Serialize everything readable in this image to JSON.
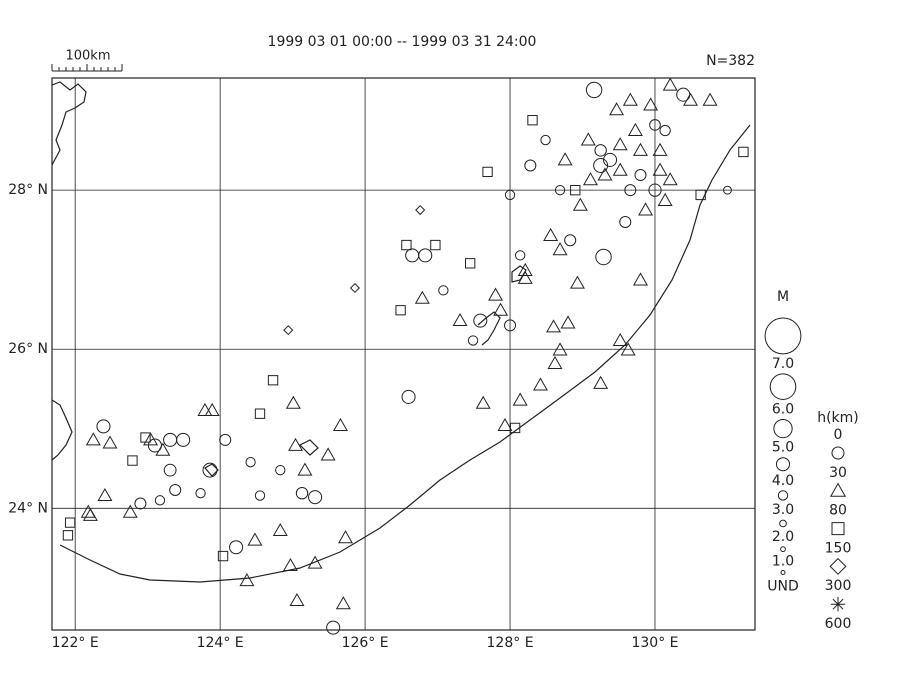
{
  "chart_data": {
    "type": "map",
    "title": "1999 03 01 00:00 -- 1999 03 31 24:00",
    "count_label": "N=382",
    "scale_label": "100km",
    "xlim": [
      121.68,
      131.38
    ],
    "ylim": [
      22.47,
      29.41
    ],
    "xticks": [
      {
        "value": 122,
        "label": "122° E"
      },
      {
        "value": 124,
        "label": "124° E"
      },
      {
        "value": 126,
        "label": "126° E"
      },
      {
        "value": 128,
        "label": "128° E"
      },
      {
        "value": 130,
        "label": "130° E"
      }
    ],
    "yticks": [
      {
        "value": 24,
        "label": "24° N"
      },
      {
        "value": 26,
        "label": "26° N"
      },
      {
        "value": 28,
        "label": "28° N"
      }
    ],
    "grid": true,
    "color": "#222222",
    "magnitude_legend": {
      "title": "M",
      "values": [
        {
          "value": 7,
          "label": "7.0"
        },
        {
          "value": 6,
          "label": "6.0"
        },
        {
          "value": 5,
          "label": "5.0"
        },
        {
          "value": 4,
          "label": "4.0"
        },
        {
          "value": 3,
          "label": "3.0"
        },
        {
          "value": 2,
          "label": "2.0"
        },
        {
          "value": 1,
          "label": "1.0"
        }
      ],
      "undetermined": "UND"
    },
    "depth_legend": {
      "title": "h(km)",
      "values": [
        0,
        30,
        80,
        150,
        300,
        600
      ],
      "shapes": [
        "circle",
        "triangle",
        "square",
        "diamond",
        "asterisk"
      ]
    },
    "events": {
      "lon": [
        129.16,
        130.39,
        130.49,
        130.76,
        130.21,
        129.66,
        129.94,
        129.47,
        129.08,
        128.31,
        128.28,
        128.49,
        128.76,
        129.25,
        129.38,
        129.52,
        129.11,
        129.31,
        129.8,
        130.07,
        130.21,
        130.0,
        130.14,
        129.66,
        128.9,
        128.69,
        128.0,
        128.97,
        129.59,
        129.87,
        130.07,
        129.8,
        129.25,
        129.52,
        130.0,
        130.14,
        130.63,
        131.22,
        131.0,
        129.73,
        129.29,
        128.83,
        128.56,
        128.69,
        128.14,
        128.21,
        128.21,
        127.8,
        127.87,
        127.59,
        128.0,
        127.49,
        127.31,
        127.08,
        126.79,
        127.45,
        126.65,
        126.83,
        126.49,
        126.76,
        126.97,
        126.57,
        127.69,
        128.93,
        128.6,
        128.8,
        129.8,
        128.69,
        128.62,
        129.52,
        129.63,
        129.25,
        128.42,
        128.14,
        127.63,
        128.07,
        127.93,
        126.6,
        125.86,
        124.94,
        122.39,
        122.25,
        122.48,
        123.04,
        123.1,
        123.31,
        123.49,
        123.79,
        123.89,
        124.07,
        124.42,
        123.86,
        123.31,
        123.38,
        123.73,
        123.17,
        122.9,
        122.41,
        122.21,
        122.76,
        122.79,
        122.97,
        123.21,
        124.55,
        124.83,
        125.13,
        125.31,
        125.17,
        125.49,
        125.66,
        125.01,
        124.73,
        124.55,
        125.04,
        124.22,
        124.04,
        124.48,
        124.83,
        124.37,
        124.97,
        125.31,
        125.73,
        125.06,
        125.7,
        125.56,
        121.93,
        121.9,
        122.18
      ],
      "lat": [
        29.26,
        29.2,
        29.13,
        29.13,
        29.32,
        29.13,
        29.07,
        29.01,
        28.63,
        28.88,
        28.31,
        28.63,
        28.38,
        28.31,
        28.38,
        28.25,
        28.13,
        28.19,
        28.19,
        28.25,
        28.13,
        28.0,
        27.87,
        28.0,
        28.0,
        28.0,
        27.94,
        27.81,
        27.6,
        27.75,
        28.5,
        28.5,
        28.5,
        28.57,
        28.82,
        28.75,
        27.94,
        28.48,
        28.0,
        28.75,
        27.16,
        27.37,
        27.43,
        27.25,
        27.18,
        26.99,
        26.89,
        26.68,
        26.49,
        26.36,
        26.3,
        26.11,
        26.36,
        26.74,
        26.64,
        27.08,
        27.18,
        27.18,
        26.49,
        27.75,
        27.31,
        27.31,
        28.23,
        26.83,
        26.28,
        26.33,
        26.87,
        25.99,
        25.82,
        26.11,
        25.99,
        25.57,
        25.55,
        25.36,
        25.32,
        25.01,
        25.04,
        25.4,
        26.77,
        26.24,
        25.03,
        24.86,
        24.82,
        24.86,
        24.79,
        24.86,
        24.86,
        25.23,
        25.23,
        24.86,
        24.58,
        24.48,
        24.48,
        24.23,
        24.19,
        24.1,
        24.06,
        24.16,
        23.91,
        23.95,
        24.6,
        24.89,
        24.73,
        24.16,
        24.48,
        24.19,
        24.14,
        24.48,
        24.67,
        25.04,
        25.32,
        25.61,
        25.19,
        24.79,
        23.51,
        23.4,
        23.6,
        23.72,
        23.09,
        23.28,
        23.31,
        23.63,
        22.84,
        22.8,
        22.5,
        23.82,
        23.66,
        23.95
      ],
      "mag": [
        4.5,
        4.0,
        3.5,
        3.5,
        3.5,
        3.5,
        3.5,
        3.5,
        3.5,
        3.0,
        3.5,
        3.0,
        3.5,
        4.2,
        4.0,
        3.5,
        3.5,
        3.5,
        3.5,
        3.5,
        3.5,
        3.8,
        3.5,
        3.5,
        3.0,
        3.0,
        3.0,
        3.5,
        3.5,
        3.5,
        3.5,
        3.5,
        3.6,
        3.5,
        3.4,
        3.3,
        3.0,
        3.0,
        2.5,
        3.5,
        4.5,
        3.5,
        3.5,
        3.5,
        3.0,
        3.5,
        3.5,
        3.5,
        3.5,
        4.0,
        3.5,
        3.0,
        3.5,
        3.0,
        3.5,
        3.0,
        4.0,
        4.0,
        3.0,
        2.0,
        3.0,
        3.0,
        3.0,
        3.5,
        3.5,
        3.5,
        3.5,
        3.5,
        3.5,
        3.5,
        3.5,
        3.5,
        3.5,
        3.5,
        3.5,
        3.0,
        3.5,
        4.0,
        2.0,
        2.0,
        4.0,
        3.5,
        3.5,
        3.5,
        4.0,
        4.0,
        4.0,
        3.5,
        3.5,
        3.5,
        3.0,
        4.2,
        3.7,
        3.5,
        3.0,
        3.0,
        3.5,
        3.5,
        3.5,
        3.5,
        3.0,
        3.0,
        3.5,
        3.0,
        3.0,
        3.6,
        4.0,
        3.5,
        3.5,
        3.5,
        3.5,
        3.0,
        3.0,
        3.5,
        4.0,
        3.0,
        3.5,
        3.5,
        3.5,
        3.5,
        3.5,
        3.5,
        3.5,
        3.5,
        4.0,
        3.0,
        3.0,
        3.5
      ],
      "depth": [
        10,
        10,
        50,
        50,
        50,
        50,
        50,
        50,
        50,
        100,
        10,
        10,
        50,
        10,
        10,
        50,
        50,
        50,
        10,
        50,
        50,
        10,
        50,
        10,
        100,
        10,
        10,
        50,
        10,
        50,
        50,
        50,
        10,
        50,
        10,
        10,
        100,
        100,
        10,
        50,
        10,
        10,
        50,
        50,
        10,
        50,
        50,
        50,
        50,
        10,
        10,
        10,
        50,
        10,
        50,
        100,
        10,
        10,
        100,
        200,
        100,
        100,
        100,
        50,
        50,
        50,
        50,
        50,
        50,
        50,
        50,
        50,
        50,
        50,
        50,
        100,
        50,
        10,
        200,
        200,
        10,
        50,
        50,
        50,
        10,
        10,
        10,
        50,
        50,
        10,
        10,
        10,
        10,
        10,
        10,
        10,
        10,
        50,
        50,
        50,
        100,
        100,
        50,
        10,
        10,
        10,
        10,
        50,
        50,
        50,
        50,
        100,
        100,
        50,
        10,
        100,
        50,
        50,
        50,
        50,
        50,
        50,
        50,
        50,
        10,
        100,
        100,
        50
      ]
    }
  }
}
